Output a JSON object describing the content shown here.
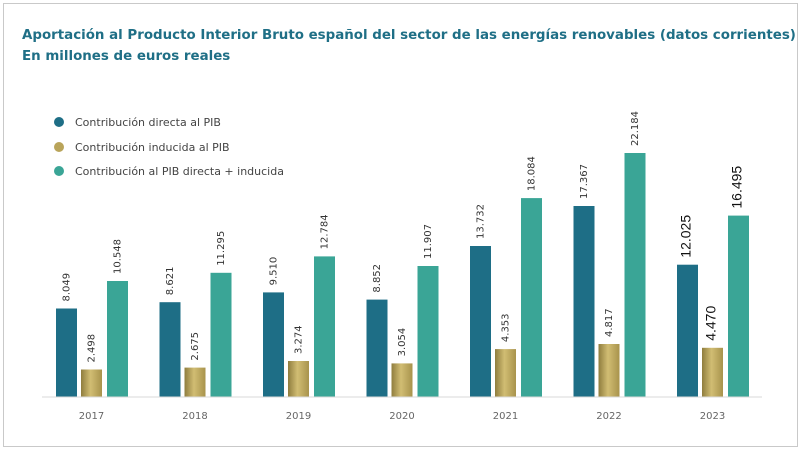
{
  "chart_data": {
    "type": "bar",
    "title": "Aportación al Producto Interior Bruto español del sector de las energías renovables (datos corrientes)",
    "subtitle": "En millones de euros reales",
    "categories": [
      "2017",
      "2018",
      "2019",
      "2020",
      "2021",
      "2022",
      "2023"
    ],
    "series": [
      {
        "name": "Contribución directa al PIB",
        "color": "#1e6e86",
        "values": [
          8049,
          8621,
          9510,
          8852,
          13732,
          17367,
          12025
        ],
        "labels": [
          "8.049",
          "8.621",
          "9.510",
          "8.852",
          "13.732",
          "17.367",
          "12.025"
        ]
      },
      {
        "name": "Contribución inducida al PIB",
        "color": "#b9a45a",
        "values": [
          2498,
          2675,
          3274,
          3054,
          4353,
          4817,
          4470
        ],
        "labels": [
          "2.498",
          "2.675",
          "3.274",
          "3.054",
          "4.353",
          "4.817",
          "4.470"
        ]
      },
      {
        "name": "Contribución al PIB directa + inducida",
        "color": "#3aa596",
        "values": [
          10548,
          11295,
          12784,
          11907,
          18084,
          22184,
          16495
        ],
        "labels": [
          "10.548",
          "11.295",
          "12.784",
          "11.907",
          "18.084",
          "22.184",
          "16.495"
        ]
      }
    ],
    "ylim": [
      0,
      22184
    ],
    "grid": false,
    "legend_position": "top-left"
  }
}
